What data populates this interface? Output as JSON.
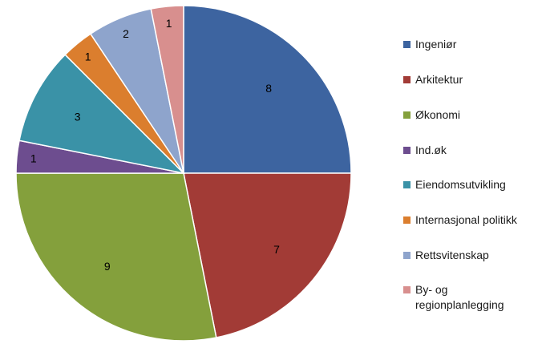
{
  "chart_data": {
    "type": "pie",
    "title": "",
    "start_angle_deg": 0,
    "direction": "clockwise",
    "categories": [
      "Ingeniør",
      "Arkitektur",
      "Økonomi",
      "Ind.øk",
      "Eiendomsutvikling",
      "Internasjonal politikk",
      "Rettsvitenskap",
      "By- og regionplanlegging"
    ],
    "values": [
      8,
      7,
      9,
      1,
      3,
      1,
      2,
      1
    ],
    "colors": [
      "#3D64A0",
      "#A23B36",
      "#84A03C",
      "#6D4D8F",
      "#3A92A7",
      "#DB7E2E",
      "#8EA4CC",
      "#D88F8E"
    ],
    "legend_position": "right",
    "data_labels": true
  }
}
